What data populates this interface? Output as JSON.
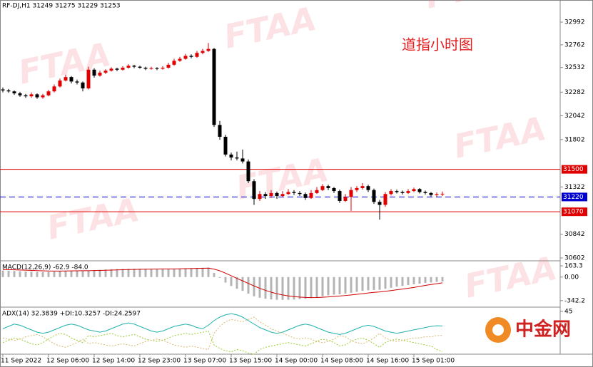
{
  "chart_data": [
    {
      "type": "candlestick",
      "title": "RF-DJ,H1  31249 31275 31229 31253",
      "annotation": "道指小时图",
      "categories": [
        "11 Sep 2022",
        null,
        null,
        null,
        null,
        null,
        null,
        null,
        "12 Sep 06:00",
        null,
        null,
        null,
        null,
        null,
        null,
        null,
        "12 Sep 14:00",
        null,
        null,
        null,
        null,
        null,
        null,
        null,
        "12 Sep 23:00",
        null,
        null,
        null,
        null,
        null,
        null,
        null,
        "13 Sep 07:00",
        null,
        null,
        null,
        null,
        null,
        null,
        null,
        "13 Sep 15:00",
        null,
        null,
        null,
        null,
        null,
        null,
        null,
        "14 Sep 00:00",
        null,
        null,
        null,
        null,
        null,
        null,
        null,
        "14 Sep 08:00",
        null,
        null,
        null,
        null,
        null,
        null,
        null,
        "14 Sep 16:00",
        null,
        null,
        null,
        null,
        null,
        null,
        null,
        "15 Sep 01:00",
        null,
        null,
        null,
        null,
        null
      ],
      "ohlc": [
        [
          32310,
          32330,
          32280,
          32300
        ],
        [
          32300,
          32315,
          32275,
          32290
        ],
        [
          32290,
          32300,
          32255,
          32270
        ],
        [
          32270,
          32285,
          32235,
          32250
        ],
        [
          32250,
          32265,
          32225,
          32240
        ],
        [
          32240,
          32280,
          32225,
          32260
        ],
        [
          32260,
          32270,
          32215,
          32230
        ],
        [
          32230,
          32265,
          32215,
          32250
        ],
        [
          32250,
          32305,
          32240,
          32290
        ],
        [
          32290,
          32360,
          32280,
          32340
        ],
        [
          32340,
          32420,
          32330,
          32400
        ],
        [
          32400,
          32460,
          32390,
          32435
        ],
        [
          32435,
          32445,
          32370,
          32390
        ],
        [
          32390,
          32410,
          32360,
          32380
        ],
        [
          32380,
          32390,
          32290,
          32320
        ],
        [
          32320,
          32540,
          32310,
          32510
        ],
        [
          32510,
          32525,
          32430,
          32450
        ],
        [
          32450,
          32500,
          32440,
          32480
        ],
        [
          32480,
          32515,
          32465,
          32500
        ],
        [
          32500,
          32535,
          32490,
          32520
        ],
        [
          32520,
          32530,
          32495,
          32510
        ],
        [
          32510,
          32545,
          32500,
          32530
        ],
        [
          32530,
          32565,
          32520,
          32550
        ],
        [
          32550,
          32560,
          32525,
          32540
        ],
        [
          32540,
          32550,
          32520,
          32530
        ],
        [
          32530,
          32540,
          32505,
          32520
        ],
        [
          32520,
          32540,
          32510,
          32525
        ],
        [
          32525,
          32535,
          32505,
          32520
        ],
        [
          32520,
          32545,
          32510,
          32530
        ],
        [
          32530,
          32580,
          32520,
          32560
        ],
        [
          32560,
          32620,
          32550,
          32600
        ],
        [
          32600,
          32640,
          32590,
          32620
        ],
        [
          32620,
          32670,
          32610,
          32650
        ],
        [
          32650,
          32665,
          32625,
          32640
        ],
        [
          32640,
          32700,
          32630,
          32680
        ],
        [
          32680,
          32720,
          32665,
          32700
        ],
        [
          32700,
          32780,
          32690,
          32720
        ],
        [
          32720,
          32730,
          31930,
          31950
        ],
        [
          31950,
          31990,
          31800,
          31830
        ],
        [
          31830,
          31850,
          31630,
          31650
        ],
        [
          31650,
          31670,
          31590,
          31620
        ],
        [
          31620,
          31680,
          31590,
          31610
        ],
        [
          31610,
          31700,
          31560,
          31580
        ],
        [
          31580,
          31600,
          31360,
          31380
        ],
        [
          31380,
          31400,
          31140,
          31200
        ],
        [
          31200,
          31280,
          31180,
          31250
        ],
        [
          31250,
          31270,
          31200,
          31230
        ],
        [
          31230,
          31290,
          31210,
          31260
        ],
        [
          31260,
          31275,
          31200,
          31230
        ],
        [
          31230,
          31280,
          31220,
          31250
        ],
        [
          31250,
          31300,
          31240,
          31270
        ],
        [
          31270,
          31290,
          31240,
          31260
        ],
        [
          31260,
          31280,
          31230,
          31250
        ],
        [
          31250,
          31265,
          31190,
          31210
        ],
        [
          31210,
          31290,
          31200,
          31260
        ],
        [
          31260,
          31320,
          31250,
          31290
        ],
        [
          31290,
          31350,
          31280,
          31330
        ],
        [
          31330,
          31345,
          31290,
          31310
        ],
        [
          31310,
          31320,
          31260,
          31280
        ],
        [
          31280,
          31295,
          31160,
          31180
        ],
        [
          31180,
          31250,
          31170,
          31220
        ],
        [
          31220,
          31320,
          31080,
          31290
        ],
        [
          31290,
          31330,
          31270,
          31310
        ],
        [
          31310,
          31360,
          31295,
          31330
        ],
        [
          31330,
          31345,
          31270,
          31290
        ],
        [
          31290,
          31305,
          31150,
          31170
        ],
        [
          31170,
          31190,
          30990,
          31140
        ],
        [
          31140,
          31270,
          31120,
          31250
        ],
        [
          31250,
          31300,
          31235,
          31280
        ],
        [
          31280,
          31295,
          31255,
          31270
        ],
        [
          31270,
          31285,
          31245,
          31260
        ],
        [
          31260,
          31300,
          31250,
          31280
        ],
        [
          31280,
          31315,
          31270,
          31300
        ],
        [
          31300,
          31310,
          31255,
          31270
        ],
        [
          31270,
          31285,
          31245,
          31260
        ],
        [
          31260,
          31270,
          31225,
          31240
        ],
        [
          31240,
          31265,
          31225,
          31249
        ],
        [
          31249,
          31275,
          31229,
          31253
        ]
      ],
      "up_color": "#e00000",
      "down_color": "#000000",
      "ylim": [
        30573,
        33216
      ],
      "yticks": [
        32992,
        32762,
        32532,
        32282,
        32042,
        31802,
        31322,
        30842,
        30602
      ],
      "levels": [
        {
          "value": 31500,
          "color": "#e00000",
          "dashed": false
        },
        {
          "value": 31220,
          "color": "#0000d0",
          "dashed": true
        },
        {
          "value": 31070,
          "color": "#e00000",
          "dashed": false
        }
      ]
    },
    {
      "type": "macd",
      "title": "MACD(12,26,9) -62.9 -84.0",
      "histogram": {
        "color": "#b4b4b4",
        "values": [
          95,
          92,
          88,
          84,
          80,
          78,
          75,
          74,
          76,
          80,
          86,
          92,
          95,
          96,
          95,
          96,
          102,
          106,
          110,
          114,
          116,
          118,
          120,
          122,
          122,
          121,
          120,
          119,
          119,
          120,
          122,
          125,
          128,
          130,
          133,
          136,
          138,
          60,
          -10,
          -80,
          -130,
          -170,
          -200,
          -240,
          -280,
          -300,
          -315,
          -325,
          -330,
          -332,
          -330,
          -326,
          -320,
          -315,
          -305,
          -292,
          -278,
          -265,
          -255,
          -250,
          -240,
          -228,
          -215,
          -200,
          -192,
          -188,
          -185,
          -170,
          -155,
          -140,
          -128,
          -115,
          -104,
          -95,
          -86,
          -78,
          -70,
          -62.9
        ]
      },
      "signal": {
        "color": "#d00000",
        "values": [
          110,
          108,
          106,
          103,
          100,
          97,
          94,
          91,
          89,
          88,
          88,
          89,
          90,
          91,
          92,
          93,
          95,
          97,
          99,
          102,
          104,
          107,
          109,
          111,
          113,
          115,
          116,
          117,
          118,
          118,
          119,
          120,
          122,
          124,
          126,
          128,
          130,
          116,
          91,
          57,
          19,
          -19,
          -55,
          -92,
          -129,
          -163,
          -193,
          -220,
          -242,
          -260,
          -274,
          -284,
          -291,
          -296,
          -298,
          -297,
          -293,
          -288,
          -281,
          -275,
          -268,
          -260,
          -251,
          -241,
          -231,
          -222,
          -215,
          -206,
          -196,
          -185,
          -174,
          -162,
          -151,
          -135,
          -121,
          -108,
          -96,
          -84.0
        ]
      },
      "ylim": [
        -437,
        226
      ],
      "yticks": [
        163.3,
        {
          "value": 0,
          "label": "0.00"
        },
        -342.2
      ]
    },
    {
      "type": "adx",
      "title": "ADX(14) 32.3839 +DI:10.3257 -DI:24.2597",
      "lines": [
        {
          "color": "#20b2aa",
          "dashed": false,
          "values": [
            30,
            32,
            34,
            33,
            31,
            29,
            27,
            26,
            27,
            29,
            31,
            33,
            34,
            33,
            31,
            29,
            28,
            27,
            28,
            30,
            32,
            34,
            35,
            34,
            32,
            30,
            28,
            27,
            28,
            30,
            32,
            33,
            34,
            33,
            31,
            30,
            33,
            37,
            40,
            42,
            43,
            42,
            40,
            37,
            34,
            31,
            29,
            27,
            26,
            27,
            29,
            31,
            33,
            34,
            33,
            31,
            29,
            27,
            26,
            25,
            26,
            28,
            30,
            32,
            33,
            32,
            30,
            28,
            27,
            26,
            27,
            28,
            29,
            30,
            31,
            32,
            32.5,
            32.3839
          ]
        },
        {
          "color": "#9acd32",
          "dashed": true,
          "values": [
            18,
            20,
            22,
            21,
            19,
            17,
            16,
            18,
            21,
            24,
            26,
            25,
            22,
            20,
            18,
            24,
            23,
            24,
            25,
            26,
            24,
            23,
            24,
            25,
            23,
            21,
            20,
            19,
            20,
            22,
            24,
            25,
            26,
            25,
            26,
            27,
            28,
            16,
            13,
            11,
            10,
            12,
            11,
            9,
            8,
            12,
            14,
            15,
            16,
            17,
            18,
            17,
            16,
            15,
            17,
            19,
            21,
            20,
            18,
            15,
            16,
            19,
            21,
            22,
            20,
            17,
            14,
            18,
            20,
            21,
            20,
            19,
            18,
            17,
            16,
            15,
            12,
            10.3257
          ]
        },
        {
          "color": "#d8b870",
          "dashed": true,
          "values": [
            22,
            21,
            20,
            21,
            23,
            24,
            25,
            23,
            20,
            17,
            15,
            14,
            16,
            18,
            21,
            17,
            18,
            17,
            16,
            15,
            16,
            17,
            16,
            15,
            17,
            19,
            20,
            21,
            20,
            18,
            16,
            15,
            14,
            15,
            14,
            13,
            12,
            26,
            32,
            36,
            38,
            37,
            36,
            38,
            40,
            36,
            33,
            30,
            28,
            26,
            24,
            22,
            21,
            22,
            21,
            19,
            18,
            19,
            21,
            24,
            23,
            20,
            18,
            17,
            19,
            22,
            26,
            22,
            20,
            19,
            20,
            21,
            22,
            22,
            23,
            23,
            24,
            24.2597
          ]
        }
      ],
      "ylim": [
        8,
        48
      ],
      "yticks": [
        45
      ]
    }
  ],
  "watermark": "FTAA",
  "logo": "中金网"
}
